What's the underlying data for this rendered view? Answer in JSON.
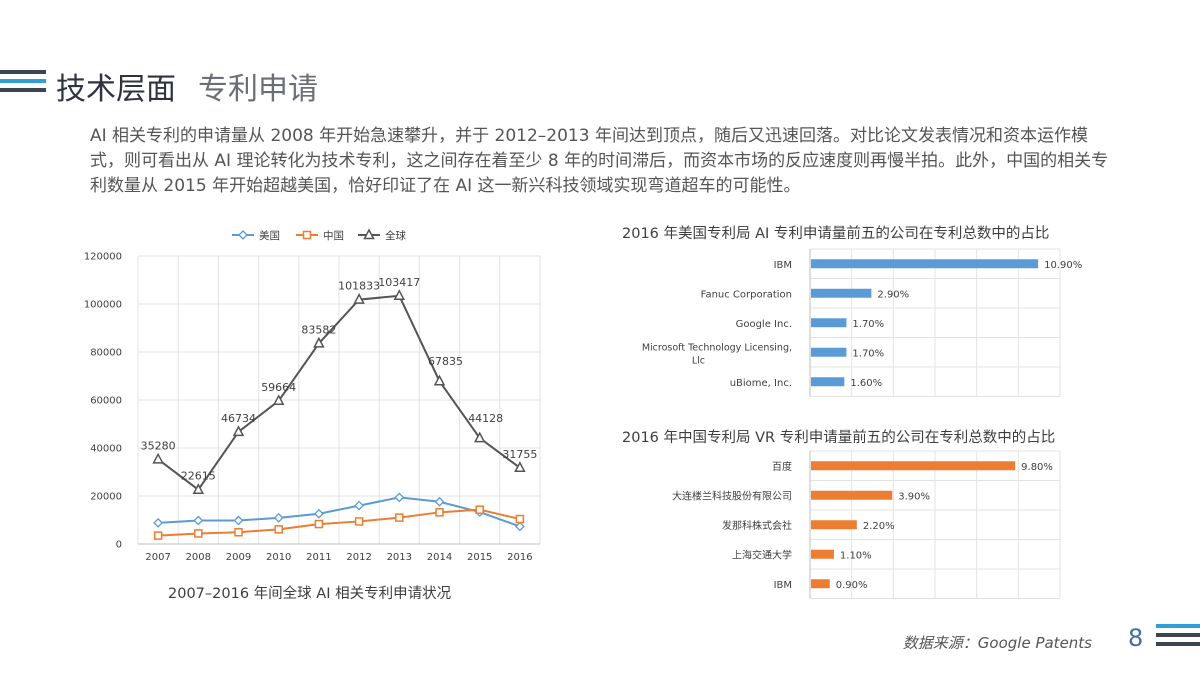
{
  "header": {
    "title": "技术层面",
    "subtitle": "专利申请"
  },
  "intro": "AI 相关专利的申请量从 2008 年开始急速攀升，并于 2012–2013 年间达到顶点，随后又迅速回落。对比论文发表情况和资本运作模式，则可看出从 AI 理论转化为技术专利，这之间存在着至少 8 年的时间滞后，而资本市场的反应速度则再慢半拍。此外，中国的相关专利数量从 2015 年开始超越美国，恰好印证了在 AI 这一新兴科技领域实现弯道超车的可能性。",
  "footer": {
    "source": "数据来源：Google Patents",
    "page_number": "8"
  },
  "colors": {
    "us": "#5b9bd5",
    "china": "#ed7d31",
    "global": "#555555",
    "bar_blue": "#5b9bd5",
    "bar_orange": "#ed7d31",
    "accent": "#2f9fd8",
    "dark": "#3c4653"
  },
  "chart_data": [
    {
      "type": "line",
      "title": "2007–2016 年间全球 AI 相关专利申请状况",
      "categories": [
        "2007",
        "2008",
        "2009",
        "2010",
        "2011",
        "2012",
        "2013",
        "2014",
        "2015",
        "2016"
      ],
      "ylim": [
        0,
        120000
      ],
      "yticks": [
        0,
        20000,
        40000,
        60000,
        80000,
        100000,
        120000
      ],
      "grid": true,
      "legend": "top",
      "series": [
        {
          "name": "美国",
          "color": "#5b9bd5",
          "marker": "diamond",
          "values": [
            8800,
            9800,
            9800,
            10900,
            12600,
            16000,
            19400,
            17600,
            13300,
            7300
          ]
        },
        {
          "name": "中国",
          "color": "#ed7d31",
          "marker": "square",
          "values": [
            3500,
            4400,
            4900,
            6100,
            8300,
            9400,
            11000,
            13200,
            14300,
            10400
          ]
        },
        {
          "name": "全球",
          "color": "#555555",
          "marker": "triangle",
          "labels": true,
          "values": [
            35280,
            22615,
            46734,
            59664,
            83582,
            101833,
            103417,
            67835,
            44128,
            31755
          ]
        }
      ]
    },
    {
      "type": "bar",
      "orientation": "horizontal",
      "title": "2016 年美国专利局 AI 专利申请量前五的公司在专利总数中的占比",
      "categories": [
        "IBM",
        "Fanuc Corporation",
        "Google Inc.",
        "Microsoft Technology Licensing, Llc",
        "uBiome, Inc."
      ],
      "values": [
        10.9,
        2.9,
        1.7,
        1.7,
        1.6
      ],
      "value_labels": [
        "10.90%",
        "2.90%",
        "1.70%",
        "1.70%",
        "1.60%"
      ],
      "xlim": [
        0,
        12
      ],
      "color": "#5b9bd5",
      "grid": true
    },
    {
      "type": "bar",
      "orientation": "horizontal",
      "title": "2016 年中国专利局 VR 专利申请量前五的公司在专利总数中的占比",
      "categories": [
        "百度",
        "大连楼兰科技股份有限公司",
        "发那科株式会社",
        "上海交通大学",
        "IBM"
      ],
      "values": [
        9.8,
        3.9,
        2.2,
        1.1,
        0.9
      ],
      "value_labels": [
        "9.80%",
        "3.90%",
        "2.20%",
        "1.10%",
        "0.90%"
      ],
      "xlim": [
        0,
        12
      ],
      "color": "#ed7d31",
      "grid": true
    }
  ]
}
